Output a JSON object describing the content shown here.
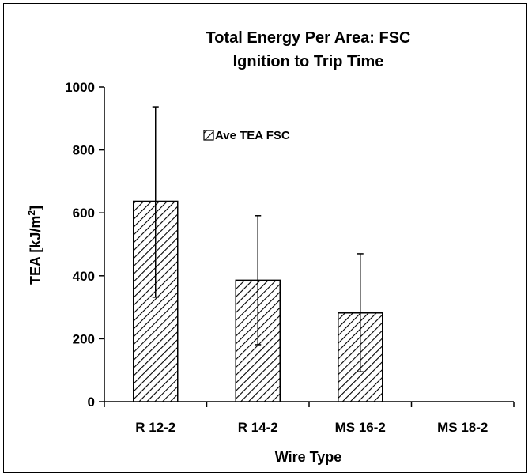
{
  "chart_data": {
    "type": "bar",
    "title": [
      "Total Energy Per Area: FSC",
      "Ignition to Trip Time"
    ],
    "xlabel": "Wire Type",
    "ylabel": "TEA [kJ/m²]",
    "ylabel_parts": {
      "base": "TEA [kJ/m",
      "sup": "2",
      "close": "]"
    },
    "ylim": [
      0,
      1000
    ],
    "yticks": [
      0,
      200,
      400,
      600,
      800,
      1000
    ],
    "grid": false,
    "legend_position": "top-left",
    "categories": [
      "R 12-2",
      "R 14-2",
      "MS 16-2",
      "MS 18-2"
    ],
    "series": [
      {
        "name": "Ave TEA FSC",
        "values": [
          637,
          386,
          282,
          null
        ],
        "error_upper": [
          300,
          205,
          188,
          null
        ],
        "error_lower": [
          305,
          205,
          187,
          null
        ],
        "pattern": "diagonal-hatch",
        "color": "#000000"
      }
    ]
  }
}
